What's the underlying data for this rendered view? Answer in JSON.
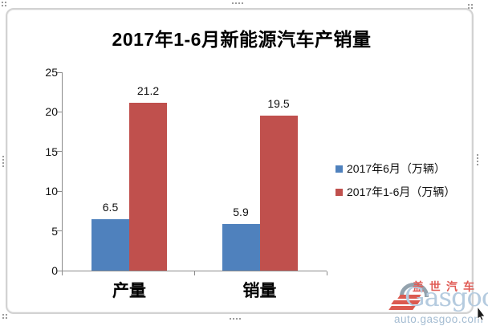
{
  "chart_data": {
    "type": "bar",
    "title": "2017年1-6月新能源汽车产销量",
    "categories": [
      "产量",
      "销量"
    ],
    "series": [
      {
        "name": "2017年6月（万辆）",
        "color": "#4F81BD",
        "values": [
          6.5,
          5.9
        ]
      },
      {
        "name": "2017年1-6月（万辆）",
        "color": "#C0504D",
        "values": [
          21.2,
          19.5
        ]
      }
    ],
    "xlabel": "",
    "ylabel": "",
    "ylim": [
      0,
      25
    ],
    "yticks": [
      0,
      5,
      10,
      15,
      20,
      25
    ],
    "grid": false,
    "legend_position": "right",
    "data_labels": true,
    "axis_color": "#8a8a8a"
  },
  "watermark": {
    "brand_cn": "盖世汽车",
    "brand_en": "Gasgoo",
    "url": "auto.gasgoo.com",
    "color_blue": "#b5cbdf",
    "color_red": "#e05b55"
  }
}
